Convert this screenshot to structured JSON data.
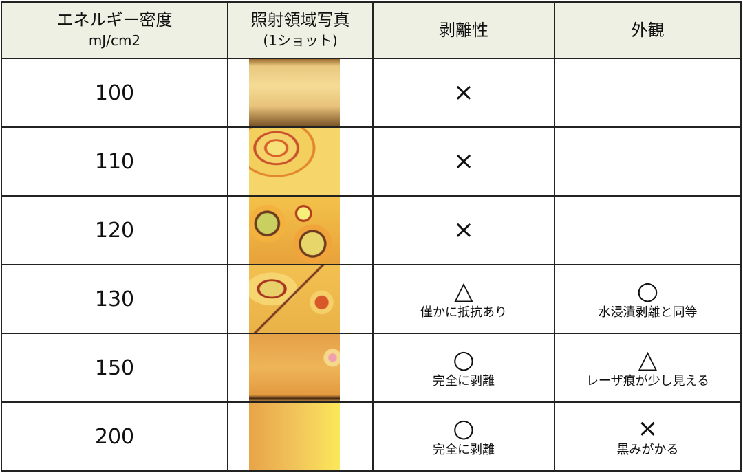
{
  "headers": {
    "energy": "エネルギー密度",
    "energy_unit": "mJ/cm2",
    "photo": "照射領域写真",
    "photo_sub": "(1ショット)",
    "peel": "剥離性",
    "appearance": "外観"
  },
  "rows": [
    {
      "energy": "100",
      "peel_symbol": "×",
      "peel_note": "",
      "appearance_symbol": "",
      "appearance_note": ""
    },
    {
      "energy": "110",
      "peel_symbol": "×",
      "peel_note": "",
      "appearance_symbol": "",
      "appearance_note": ""
    },
    {
      "energy": "120",
      "peel_symbol": "×",
      "peel_note": "",
      "appearance_symbol": "",
      "appearance_note": ""
    },
    {
      "energy": "130",
      "peel_symbol": "△",
      "peel_note": "僅かに抵抗あり",
      "appearance_symbol": "○",
      "appearance_note": "水浸漬剥離と同等"
    },
    {
      "energy": "150",
      "peel_symbol": "○",
      "peel_note": "完全に剥離",
      "appearance_symbol": "△",
      "appearance_note": "レーザ痕が少し見える"
    },
    {
      "energy": "200",
      "peel_symbol": "○",
      "peel_note": "完全に剥離",
      "appearance_symbol": "×",
      "appearance_note": "黒みがかる"
    }
  ],
  "colors": {
    "header_bg": "#eef0e3",
    "border": "#222222"
  }
}
